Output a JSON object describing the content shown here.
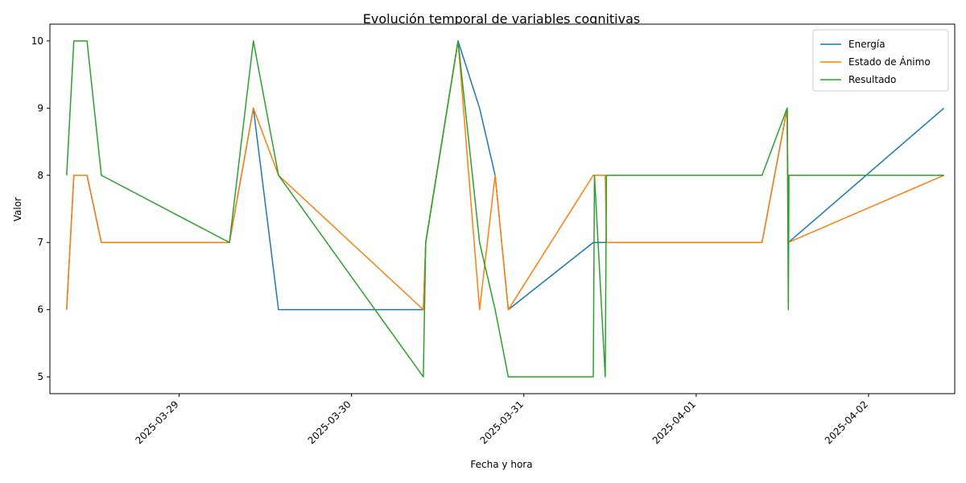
{
  "chart_data": {
    "type": "line",
    "title": "Evolución temporal de variables cognitivas",
    "xlabel": "Fecha y hora",
    "ylabel": "Valor",
    "xlim": [
      "2025-03-28 06:00",
      "2025-04-02 12:00"
    ],
    "ylim": [
      4.75,
      10.25
    ],
    "x_ticks": [
      "2025-03-29",
      "2025-03-30",
      "2025-03-31",
      "2025-04-01",
      "2025-04-02"
    ],
    "y_ticks": [
      5,
      6,
      7,
      8,
      9,
      10
    ],
    "grid": false,
    "legend_position": "top-right",
    "series": [
      {
        "name": "Energía",
        "color": "#1f77b4",
        "points": [
          [
            "2025-03-28 08:20",
            6
          ],
          [
            "2025-03-28 09:20",
            8
          ],
          [
            "2025-03-28 11:10",
            8
          ],
          [
            "2025-03-28 13:10",
            7
          ],
          [
            "2025-03-29 07:00",
            7
          ],
          [
            "2025-03-29 10:20",
            9
          ],
          [
            "2025-03-29 13:50",
            6
          ],
          [
            "2025-03-30 10:00",
            6
          ],
          [
            "2025-03-30 10:20",
            7
          ],
          [
            "2025-03-30 14:50",
            10
          ],
          [
            "2025-03-30 17:50",
            9
          ],
          [
            "2025-03-30 20:00",
            8
          ],
          [
            "2025-03-30 21:50",
            6
          ],
          [
            "2025-03-31 09:40",
            7
          ],
          [
            "2025-03-31 11:20",
            7
          ],
          [
            "2025-04-01 09:10",
            7
          ],
          [
            "2025-04-01 12:40",
            9
          ],
          [
            "2025-04-01 12:50",
            7
          ],
          [
            "2025-04-02 10:30",
            9
          ]
        ]
      },
      {
        "name": "Estado de Ánimo",
        "color": "#ff7f0e",
        "points": [
          [
            "2025-03-28 08:20",
            6
          ],
          [
            "2025-03-28 09:20",
            8
          ],
          [
            "2025-03-28 11:10",
            8
          ],
          [
            "2025-03-28 13:10",
            7
          ],
          [
            "2025-03-29 07:00",
            7
          ],
          [
            "2025-03-29 10:20",
            9
          ],
          [
            "2025-03-29 13:50",
            8
          ],
          [
            "2025-03-30 10:00",
            6
          ],
          [
            "2025-03-30 10:20",
            7
          ],
          [
            "2025-03-30 14:50",
            10
          ],
          [
            "2025-03-30 17:50",
            6
          ],
          [
            "2025-03-30 20:00",
            8
          ],
          [
            "2025-03-30 21:50",
            6
          ],
          [
            "2025-03-31 09:40",
            8
          ],
          [
            "2025-03-31 11:20",
            8
          ],
          [
            "2025-03-31 11:30",
            7
          ],
          [
            "2025-04-01 09:10",
            7
          ],
          [
            "2025-04-01 12:40",
            9
          ],
          [
            "2025-04-01 12:50",
            7
          ],
          [
            "2025-04-02 10:30",
            8
          ]
        ]
      },
      {
        "name": "Resultado",
        "color": "#2ca02c",
        "points": [
          [
            "2025-03-28 08:20",
            8
          ],
          [
            "2025-03-28 09:20",
            10
          ],
          [
            "2025-03-28 11:10",
            10
          ],
          [
            "2025-03-28 13:10",
            8
          ],
          [
            "2025-03-29 07:00",
            7
          ],
          [
            "2025-03-29 10:20",
            10
          ],
          [
            "2025-03-29 13:50",
            8
          ],
          [
            "2025-03-30 10:00",
            5
          ],
          [
            "2025-03-30 10:20",
            7
          ],
          [
            "2025-03-30 14:50",
            10
          ],
          [
            "2025-03-30 17:50",
            7
          ],
          [
            "2025-03-30 20:00",
            6
          ],
          [
            "2025-03-30 21:50",
            5
          ],
          [
            "2025-03-31 09:40",
            5
          ],
          [
            "2025-03-31 09:50",
            8
          ],
          [
            "2025-03-31 11:20",
            5
          ],
          [
            "2025-03-31 11:30",
            8
          ],
          [
            "2025-04-01 09:10",
            8
          ],
          [
            "2025-04-01 12:40",
            9
          ],
          [
            "2025-04-01 12:50",
            6
          ],
          [
            "2025-04-01 12:55",
            8
          ],
          [
            "2025-04-02 10:30",
            8
          ]
        ]
      }
    ]
  }
}
